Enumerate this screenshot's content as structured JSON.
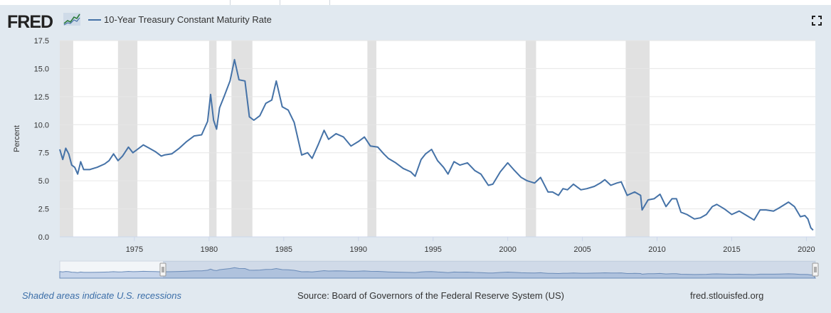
{
  "header": {
    "logo_text": "FRED",
    "legend_label": "10-Year Treasury Constant Maturity Rate"
  },
  "footer": {
    "recession_note": "Shaded areas indicate U.S. recessions",
    "source": "Source: Board of Governors of the Federal Reserve System (US)",
    "site": "fred.stlouisfed.org"
  },
  "colors": {
    "series": "#4572a7",
    "recession": "#e1e1e1",
    "background": "#e1e9f0",
    "navigator_fill": "#c6d4ea"
  },
  "icons": {
    "fullscreen": "fullscreen-icon",
    "logo_mark": "fred-graph-icon"
  },
  "chart_data": {
    "type": "line",
    "title": "",
    "xlabel": "",
    "ylabel": "Percent",
    "xlim": [
      1970.0,
      2020.6
    ],
    "ylim": [
      0,
      17.5
    ],
    "grid": true,
    "y_ticks": [
      0,
      2.5,
      5,
      7.5,
      10,
      12.5,
      15,
      17.5
    ],
    "y_tick_labels": [
      "0.0",
      "2.5",
      "5.0",
      "7.5",
      "10.0",
      "12.5",
      "15.0",
      "17.5"
    ],
    "x_ticks": [
      1975,
      1980,
      1985,
      1990,
      1995,
      2000,
      2005,
      2010,
      2015,
      2020
    ],
    "x_tick_labels": [
      "1975",
      "1980",
      "1985",
      "1990",
      "1995",
      "2000",
      "2005",
      "2010",
      "2015",
      "2020"
    ],
    "recessions": [
      [
        1970.0,
        1970.9
      ],
      [
        1973.9,
        1975.2
      ],
      [
        1980.0,
        1980.5
      ],
      [
        1981.5,
        1982.9
      ],
      [
        1990.6,
        1991.2
      ],
      [
        2001.2,
        2001.9
      ],
      [
        2007.9,
        2009.5
      ]
    ],
    "series": [
      {
        "name": "10-Year Treasury Constant Maturity Rate",
        "x": [
          1970.0,
          1970.2,
          1970.4,
          1970.6,
          1970.8,
          1971.0,
          1971.2,
          1971.4,
          1971.6,
          1972.0,
          1972.5,
          1973.0,
          1973.3,
          1973.6,
          1973.9,
          1974.2,
          1974.6,
          1974.9,
          1975.2,
          1975.6,
          1976.0,
          1976.4,
          1976.8,
          1977.0,
          1977.5,
          1978.0,
          1978.5,
          1979.0,
          1979.5,
          1979.9,
          1980.1,
          1980.3,
          1980.5,
          1980.7,
          1981.0,
          1981.4,
          1981.7,
          1982.0,
          1982.4,
          1982.7,
          1983.0,
          1983.4,
          1983.8,
          1984.2,
          1984.5,
          1984.9,
          1985.3,
          1985.7,
          1986.2,
          1986.6,
          1986.9,
          1987.3,
          1987.7,
          1988.0,
          1988.5,
          1989.0,
          1989.5,
          1990.0,
          1990.4,
          1990.8,
          1991.3,
          1991.7,
          1992.0,
          1992.5,
          1993.0,
          1993.5,
          1993.8,
          1994.2,
          1994.5,
          1994.9,
          1995.3,
          1995.7,
          1996.0,
          1996.4,
          1996.8,
          1997.3,
          1997.8,
          1998.2,
          1998.7,
          1999.0,
          1999.5,
          2000.0,
          2000.4,
          2000.9,
          2001.3,
          2001.8,
          2002.2,
          2002.7,
          2003.0,
          2003.4,
          2003.7,
          2004.0,
          2004.4,
          2004.9,
          2005.3,
          2005.8,
          2006.2,
          2006.5,
          2006.9,
          2007.3,
          2007.6,
          2008.0,
          2008.5,
          2008.9,
          2009.0,
          2009.4,
          2009.8,
          2010.2,
          2010.6,
          2011.0,
          2011.3,
          2011.6,
          2012.0,
          2012.5,
          2012.9,
          2013.3,
          2013.7,
          2014.0,
          2014.5,
          2015.0,
          2015.5,
          2016.0,
          2016.5,
          2016.9,
          2017.3,
          2017.8,
          2018.2,
          2018.8,
          2019.2,
          2019.6,
          2019.9,
          2020.1,
          2020.3,
          2020.45
        ],
        "values": [
          7.8,
          6.9,
          7.9,
          7.4,
          6.4,
          6.2,
          5.6,
          6.7,
          6.0,
          6.0,
          6.2,
          6.5,
          6.8,
          7.4,
          6.8,
          7.2,
          8.0,
          7.5,
          7.8,
          8.2,
          7.9,
          7.6,
          7.2,
          7.3,
          7.4,
          7.9,
          8.5,
          9.0,
          9.1,
          10.3,
          12.7,
          10.4,
          9.6,
          11.5,
          12.5,
          13.9,
          15.8,
          14.0,
          13.9,
          10.7,
          10.4,
          10.8,
          11.9,
          12.2,
          13.9,
          11.6,
          11.3,
          10.2,
          7.3,
          7.5,
          7.0,
          8.2,
          9.5,
          8.7,
          9.2,
          8.9,
          8.1,
          8.5,
          8.9,
          8.1,
          8.0,
          7.4,
          7.0,
          6.6,
          6.1,
          5.8,
          5.4,
          6.9,
          7.4,
          7.8,
          6.8,
          6.2,
          5.6,
          6.7,
          6.4,
          6.6,
          5.9,
          5.6,
          4.6,
          4.7,
          5.8,
          6.6,
          6.0,
          5.3,
          5.0,
          4.8,
          5.3,
          4.0,
          4.0,
          3.7,
          4.3,
          4.2,
          4.7,
          4.2,
          4.3,
          4.5,
          4.8,
          5.1,
          4.6,
          4.8,
          4.9,
          3.7,
          4.0,
          3.7,
          2.4,
          3.3,
          3.4,
          3.8,
          2.7,
          3.4,
          3.4,
          2.2,
          2.0,
          1.6,
          1.7,
          2.0,
          2.7,
          2.9,
          2.5,
          2.0,
          2.3,
          1.9,
          1.5,
          2.4,
          2.4,
          2.3,
          2.6,
          3.1,
          2.7,
          1.8,
          1.9,
          1.6,
          0.8,
          0.6
        ]
      }
    ]
  }
}
